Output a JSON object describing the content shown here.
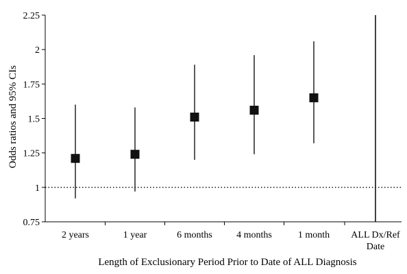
{
  "chart_data": {
    "type": "scatter",
    "subtype": "point-with-error-bars",
    "title": "",
    "xlabel": "Length of Exclusionary Period Prior to Date of ALL Diagnosis",
    "ylabel": "Odds ratios and 95% CIs",
    "ylim": [
      0.75,
      2.25
    ],
    "y_ticks": [
      "0.75",
      "1",
      "1.25",
      "1.5",
      "1.75",
      "2",
      "2.25"
    ],
    "y_tick_values": [
      0.75,
      1.0,
      1.25,
      1.5,
      1.75,
      2.0,
      2.25
    ],
    "categories": [
      "2 years",
      "1 year",
      "6 months",
      "4 months",
      "1 month",
      "ALL Dx/Ref Date"
    ],
    "points": [
      {
        "category": "2 years",
        "or": 1.21,
        "ci_low": 0.92,
        "ci_high": 1.6
      },
      {
        "category": "1 year",
        "or": 1.24,
        "ci_low": 0.97,
        "ci_high": 1.58
      },
      {
        "category": "6 months",
        "or": 1.51,
        "ci_low": 1.2,
        "ci_high": 1.89
      },
      {
        "category": "4 months",
        "or": 1.56,
        "ci_low": 1.24,
        "ci_high": 1.96
      },
      {
        "category": "1 month",
        "or": 1.65,
        "ci_low": 1.32,
        "ci_high": 2.06
      }
    ],
    "reference_line": {
      "y": 1.0,
      "style": "dotted"
    },
    "vertical_marker_category": "ALL Dx/Ref Date",
    "grid": false,
    "legend": "none",
    "colors": {
      "marker": "#111111",
      "line": "#000000"
    }
  }
}
